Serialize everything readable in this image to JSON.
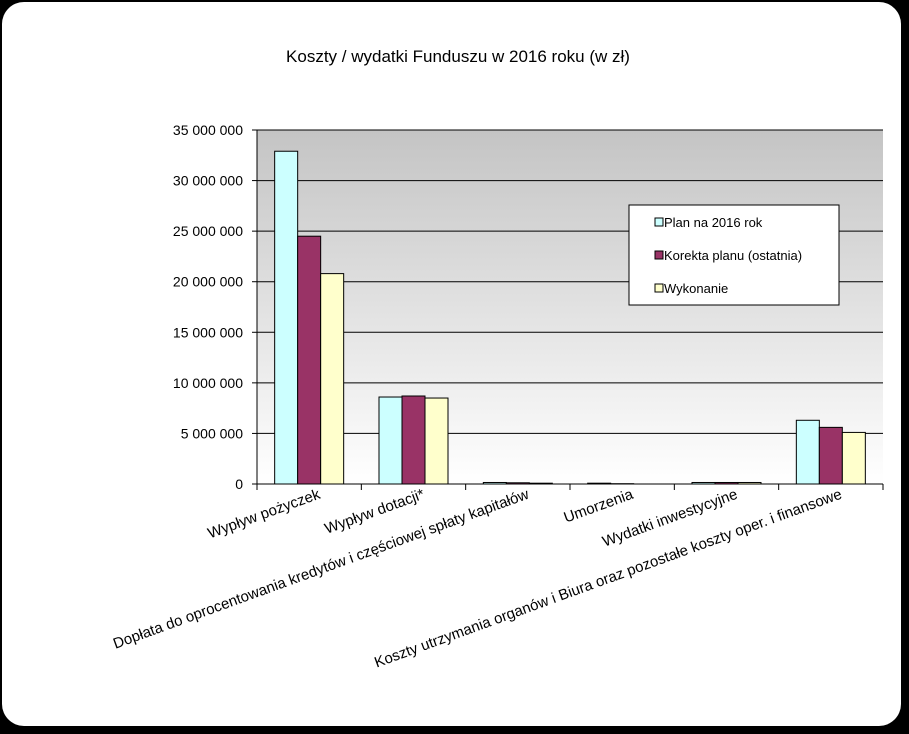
{
  "chart_data": {
    "type": "bar",
    "title": "Koszty / wydatki Funduszu  w 2016 roku (w zł)",
    "categories": [
      "Wypływ pożyczek",
      "Wypływ dotacji*",
      "Dopłata do oprocentowania kredytów i częściowej spłaty kapitałów",
      "Umorzenia",
      "Wydatki inwestycyjne",
      "Koszty utrzymania organów i Biura oraz pozostałe koszty oper. i finansowe"
    ],
    "series": [
      {
        "name": "Plan na 2016  rok",
        "color": "#ccffff",
        "values": [
          32900000,
          8600000,
          150000,
          80000,
          150000,
          6300000
        ]
      },
      {
        "name": "Korekta planu (ostatnia)",
        "color": "#993366",
        "values": [
          24500000,
          8700000,
          120000,
          30000,
          150000,
          5600000
        ]
      },
      {
        "name": "Wykonanie",
        "color": "#ffffcc",
        "values": [
          20800000,
          8500000,
          80000,
          0,
          150000,
          5100000
        ]
      }
    ],
    "ylim": [
      0,
      35000000
    ],
    "yticks": [
      0,
      5000000,
      10000000,
      15000000,
      20000000,
      25000000,
      30000000,
      35000000
    ],
    "ytick_labels": [
      "0",
      "5 000 000",
      "10 000 000",
      "15 000 000",
      "20 000 000",
      "25 000 000",
      "30 000 000",
      "35 000 000"
    ],
    "grid": true,
    "legend_position": "right"
  }
}
